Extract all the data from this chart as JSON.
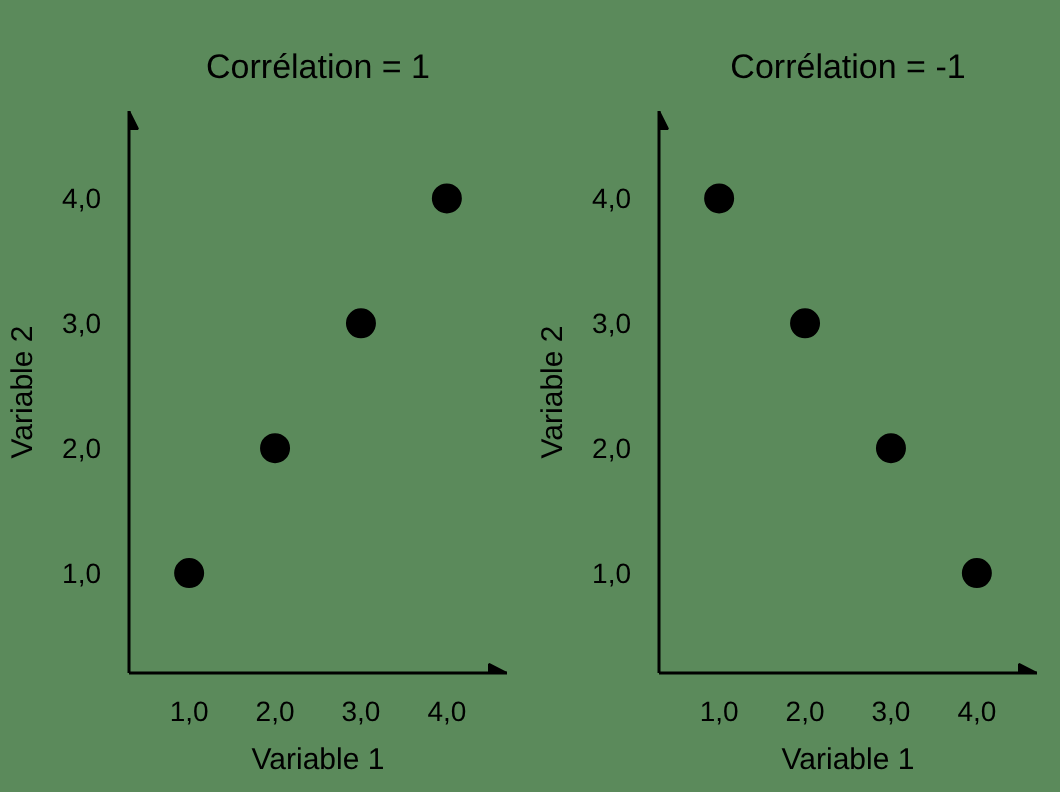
{
  "chart_data": [
    {
      "type": "scatter",
      "title": "Corrélation = 1",
      "xlabel": "Variable 1",
      "ylabel": "Variable 2",
      "x": [
        1,
        2,
        3,
        4
      ],
      "values": [
        1,
        2,
        3,
        4
      ],
      "color": "#000000",
      "marker": "circle",
      "xlim": [
        0.3,
        4.7
      ],
      "ylim": [
        0.2,
        4.7
      ],
      "xticks": [
        {
          "value": 1,
          "label": "1,0"
        },
        {
          "value": 2,
          "label": "2,0"
        },
        {
          "value": 3,
          "label": "3,0"
        },
        {
          "value": 4,
          "label": "4,0"
        }
      ],
      "yticks": [
        {
          "value": 1,
          "label": "1,0"
        },
        {
          "value": 2,
          "label": "2,0"
        },
        {
          "value": 3,
          "label": "3,0"
        },
        {
          "value": 4,
          "label": "4,0"
        }
      ]
    },
    {
      "type": "scatter",
      "title": "Corrélation = -1",
      "xlabel": "Variable 1",
      "ylabel": "Variable 2",
      "x": [
        1,
        2,
        3,
        4
      ],
      "values": [
        4,
        3,
        2,
        1
      ],
      "color": "#000000",
      "marker": "circle",
      "xlim": [
        0.3,
        4.7
      ],
      "ylim": [
        0.2,
        4.7
      ],
      "xticks": [
        {
          "value": 1,
          "label": "1,0"
        },
        {
          "value": 2,
          "label": "2,0"
        },
        {
          "value": 3,
          "label": "3,0"
        },
        {
          "value": 4,
          "label": "4,0"
        }
      ],
      "yticks": [
        {
          "value": 1,
          "label": "1,0"
        },
        {
          "value": 2,
          "label": "2,0"
        },
        {
          "value": 3,
          "label": "3,0"
        },
        {
          "value": 4,
          "label": "4,0"
        }
      ]
    }
  ]
}
